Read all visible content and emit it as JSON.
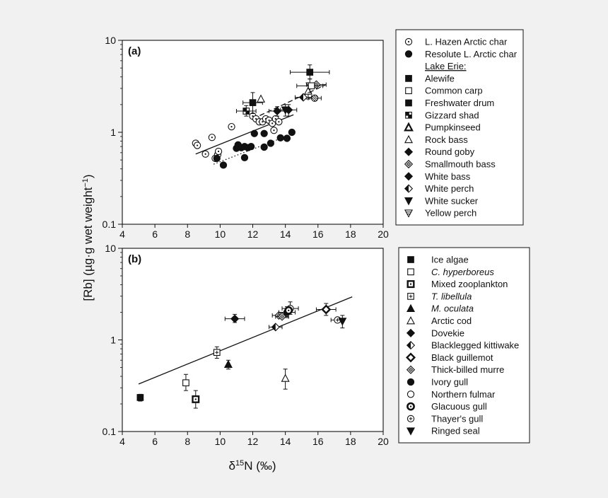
{
  "chart_data": [
    {
      "type": "scatter",
      "panel_label": "(a)",
      "xlabel": "δ15N (‰)",
      "ylabel": "[Rb] (µg·g wet weight⁻¹)",
      "xlim": [
        4,
        20
      ],
      "ylim": [
        0.1,
        10
      ],
      "yscale": "log",
      "x_ticks": [
        "4",
        "6",
        "8",
        "10",
        "12",
        "14",
        "16",
        "18",
        "20"
      ],
      "y_ticks": [
        "0.1",
        "1",
        "10"
      ],
      "legend_placement": "right",
      "legend": [
        {
          "label": "L. Hazen Arctic char",
          "marker": "circle-dot"
        },
        {
          "label": "Resolute L. Arctic char",
          "marker": "circle-filled"
        },
        {
          "label": "Lake Erie:",
          "marker": "none",
          "underline": true
        },
        {
          "label": "Alewife",
          "marker": "square-filled"
        },
        {
          "label": "Common carp",
          "marker": "square-open"
        },
        {
          "label": "Freshwater drum",
          "marker": "square-filled"
        },
        {
          "label": "Gizzard shad",
          "marker": "square-hatched"
        },
        {
          "label": "Pumpkinseed",
          "marker": "triangle-bold"
        },
        {
          "label": "Rock bass",
          "marker": "triangle-open"
        },
        {
          "label": "Round goby",
          "marker": "diamond-filled"
        },
        {
          "label": "Smallmouth bass",
          "marker": "diamond-dot"
        },
        {
          "label": "White bass",
          "marker": "diamond-filled"
        },
        {
          "label": "White perch",
          "marker": "diamond-half"
        },
        {
          "label": "White sucker",
          "marker": "triangle-down-filled"
        },
        {
          "label": "Yellow perch",
          "marker": "triangle-down-lined"
        }
      ],
      "series": [
        {
          "marker": "circle-dot",
          "points": [
            [
              8.5,
              0.76
            ],
            [
              8.6,
              0.72
            ],
            [
              9.1,
              0.58
            ],
            [
              9.5,
              0.88
            ],
            [
              9.7,
              0.52
            ],
            [
              9.85,
              0.57
            ],
            [
              9.9,
              0.62
            ],
            [
              10.7,
              1.15
            ],
            [
              12.0,
              1.5
            ],
            [
              12.2,
              1.4
            ],
            [
              12.4,
              1.3
            ],
            [
              12.6,
              1.3
            ],
            [
              12.8,
              1.4
            ],
            [
              13.0,
              1.35
            ],
            [
              13.2,
              1.25
            ],
            [
              13.4,
              1.4
            ],
            [
              13.6,
              1.3
            ],
            [
              13.3,
              1.05
            ]
          ]
        },
        {
          "marker": "circle-filled",
          "points": [
            [
              9.8,
              0.52
            ],
            [
              10.2,
              0.44
            ],
            [
              11.0,
              0.67
            ],
            [
              11.1,
              0.73
            ],
            [
              11.3,
              0.68
            ],
            [
              11.5,
              0.53
            ],
            [
              11.5,
              0.7
            ],
            [
              11.7,
              0.68
            ],
            [
              11.9,
              0.7
            ],
            [
              12.1,
              0.97
            ],
            [
              12.7,
              0.97
            ],
            [
              12.7,
              0.69
            ],
            [
              13.1,
              0.76
            ],
            [
              13.7,
              0.87
            ],
            [
              14.1,
              0.86
            ],
            [
              14.4,
              1.0
            ]
          ]
        },
        {
          "marker": "square-filled",
          "points": [
            [
              15.5,
              4.5
            ]
          ],
          "xerr": 1.2,
          "yerr_hi": 5.4,
          "yerr_lo": 3.8
        },
        {
          "marker": "square-filled",
          "points": [
            [
              12.0,
              2.1
            ]
          ],
          "xerr": 0.6,
          "yerr_hi": 2.7,
          "yerr_lo": 1.6
        },
        {
          "marker": "square-hatched",
          "points": [
            [
              11.6,
              1.7
            ]
          ],
          "xerr": 0.6,
          "yerr_hi": 1.95,
          "yerr_lo": 1.5
        },
        {
          "marker": "triangle-open",
          "points": [
            [
              12.5,
              2.3
            ]
          ]
        },
        {
          "marker": "triangle-open",
          "points": [
            [
              15.4,
              2.8
            ]
          ],
          "yerr_hi": 3.4,
          "yerr_lo": 2.3
        },
        {
          "marker": "diamond-filled",
          "points": [
            [
              13.5,
              1.7
            ]
          ],
          "xerr": 0.5,
          "yerr_hi": 1.9,
          "yerr_lo": 1.5
        },
        {
          "marker": "diamond-filled",
          "points": [
            [
              14.2,
              1.75
            ]
          ],
          "xerr": 0.5,
          "yerr_hi": 2.0,
          "yerr_lo": 1.5
        },
        {
          "marker": "diamond-dot",
          "points": [
            [
              15.9,
              3.3
            ]
          ],
          "xerr": 0.6
        },
        {
          "marker": "diamond-half",
          "points": [
            [
              15.1,
              2.4
            ]
          ],
          "xerr": 0.5
        },
        {
          "marker": "triangle-down-filled",
          "points": [
            [
              14.0,
              1.75
            ]
          ],
          "yerr_hi": 2.0,
          "yerr_lo": 1.5
        },
        {
          "marker": "triangle-down-lined",
          "points": [
            [
              15.5,
              3.2
            ]
          ],
          "xerr": 0.8,
          "yerr_hi": 3.8,
          "yerr_lo": 2.7
        },
        {
          "marker": "square-open",
          "points": [
            [
              15.6,
              3.2
            ]
          ]
        },
        {
          "marker": "circle-hatched",
          "points": [
            [
              15.8,
              2.35
            ]
          ],
          "xerr": 0.4
        }
      ],
      "fit_lines": [
        {
          "style": "solid",
          "from": [
            8.5,
            0.58
          ],
          "to": [
            14.5,
            1.55
          ]
        },
        {
          "style": "dashed",
          "from": [
            12.0,
            1.4
          ],
          "to": [
            16.5,
            3.3
          ]
        },
        {
          "style": "dotted",
          "from": [
            9.6,
            0.45
          ],
          "to": [
            14.5,
            0.97
          ]
        }
      ]
    },
    {
      "type": "scatter",
      "panel_label": "(b)",
      "xlabel": "δ15N (‰)",
      "ylabel": "[Rb] (µg·g wet weight⁻¹)",
      "xlim": [
        4,
        20
      ],
      "ylim": [
        0.1,
        10
      ],
      "yscale": "log",
      "x_ticks": [
        "4",
        "6",
        "8",
        "10",
        "12",
        "14",
        "16",
        "18",
        "20"
      ],
      "y_ticks": [
        "0.1",
        "1",
        "10"
      ],
      "legend_placement": "right",
      "legend": [
        {
          "label": "Ice algae",
          "marker": "square-filled",
          "italic": false
        },
        {
          "label": "C. hyperboreus",
          "marker": "square-open",
          "italic": true
        },
        {
          "label": "Mixed zooplankton",
          "marker": "square-dot",
          "italic": false
        },
        {
          "label": "T. libellula",
          "marker": "square-plus",
          "italic": true
        },
        {
          "label": "M. oculata",
          "marker": "triangle-filled",
          "italic": true
        },
        {
          "label": "Arctic cod",
          "marker": "triangle-open",
          "italic": false
        },
        {
          "label": "Dovekie",
          "marker": "diamond-filled",
          "italic": false
        },
        {
          "label": "Blacklegged kittiwake",
          "marker": "diamond-half",
          "italic": false
        },
        {
          "label": "Black guillemot",
          "marker": "diamond-open-bold",
          "italic": false
        },
        {
          "label": "Thick-billed murre",
          "marker": "diamond-dot",
          "italic": false
        },
        {
          "label": "Ivory gull",
          "marker": "circle-filled",
          "italic": false
        },
        {
          "label": "Northern fulmar",
          "marker": "circle-open",
          "italic": false
        },
        {
          "label": "Glacuous gull",
          "marker": "circle-bold-dot",
          "italic": false
        },
        {
          "label": "Thayer's gull",
          "marker": "circle-plus",
          "italic": false
        },
        {
          "label": "Ringed seal",
          "marker": "triangle-down-filled",
          "italic": false
        }
      ],
      "series": [
        {
          "marker": "square-filled",
          "points": [
            [
              5.1,
              0.235
            ]
          ],
          "yerr_hi": 0.255,
          "yerr_lo": 0.215
        },
        {
          "marker": "square-open",
          "points": [
            [
              7.9,
              0.34
            ]
          ],
          "yerr_hi": 0.42,
          "yerr_lo": 0.28
        },
        {
          "marker": "square-dot",
          "points": [
            [
              8.5,
              0.225
            ]
          ],
          "yerr_hi": 0.28,
          "yerr_lo": 0.18
        },
        {
          "marker": "square-plus",
          "points": [
            [
              9.8,
              0.73
            ]
          ],
          "yerr_hi": 0.84,
          "yerr_lo": 0.63
        },
        {
          "marker": "triangle-filled",
          "points": [
            [
              10.5,
              0.54
            ]
          ],
          "yerr_hi": 0.6,
          "yerr_lo": 0.48
        },
        {
          "marker": "triangle-open",
          "points": [
            [
              14.0,
              0.38
            ]
          ],
          "yerr_hi": 0.48,
          "yerr_lo": 0.29
        },
        {
          "marker": "diamond-filled",
          "points": [
            [
              10.9,
              1.7
            ]
          ],
          "xerr": 0.6,
          "yerr_hi": 1.9,
          "yerr_lo": 1.55
        },
        {
          "marker": "diamond-half",
          "points": [
            [
              13.4,
              1.38
            ]
          ],
          "xerr": 0.4
        },
        {
          "marker": "diamond-open-bold",
          "points": [
            [
              16.5,
              2.15
            ]
          ],
          "xerr": 0.6,
          "yerr_hi": 2.5,
          "yerr_lo": 1.85
        },
        {
          "marker": "diamond-dot",
          "points": [
            [
              13.6,
              1.85
            ]
          ],
          "xerr": 0.4
        },
        {
          "marker": "diamond-dot",
          "points": [
            [
              13.8,
              1.8
            ]
          ],
          "xerr": 0.4
        },
        {
          "marker": "circle-filled",
          "points": [
            [
              14.1,
              2.0
            ]
          ],
          "xerr": 0.5,
          "yerr_hi": 2.3,
          "yerr_lo": 1.75
        },
        {
          "marker": "circle-open",
          "points": [
            [
              14.3,
              2.2
            ]
          ],
          "xerr": 0.5,
          "yerr_hi": 2.6,
          "yerr_lo": 1.9
        },
        {
          "marker": "circle-bold-dot",
          "points": [
            [
              14.2,
              2.1
            ]
          ]
        },
        {
          "marker": "circle-plus",
          "points": [
            [
              17.2,
              1.65
            ]
          ],
          "xerr": 0.4
        },
        {
          "marker": "triangle-down-filled",
          "points": [
            [
              17.5,
              1.6
            ]
          ],
          "yerr_hi": 1.85,
          "yerr_lo": 1.35
        }
      ],
      "fit_lines": [
        {
          "style": "solid",
          "from": [
            5.0,
            0.33
          ],
          "to": [
            18.1,
            2.95
          ]
        }
      ]
    }
  ]
}
